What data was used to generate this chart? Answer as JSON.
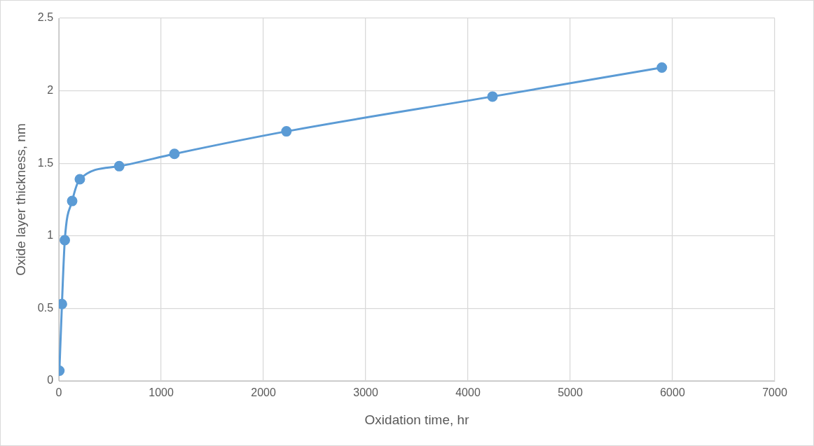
{
  "chart_data": {
    "type": "line",
    "xlabel": "Oxidation time, hr",
    "ylabel": "Oxide layer thickness, nm",
    "x": [
      5,
      30,
      58,
      130,
      205,
      590,
      1130,
      2225,
      4240,
      5896
    ],
    "series": [
      {
        "color": "#5b9bd5",
        "values": [
          0.07,
          0.53,
          0.97,
          1.24,
          1.39,
          1.48,
          1.565,
          1.72,
          1.96,
          2.16
        ]
      }
    ],
    "xlim": [
      0,
      7000
    ],
    "xticks": [
      0,
      1000,
      2000,
      3000,
      4000,
      5000,
      6000,
      7000
    ],
    "ylim": [
      0,
      2.5
    ],
    "yticks": [
      0,
      0.5,
      1,
      1.5,
      2,
      2.5
    ],
    "grid": true,
    "legend": false,
    "marker": "circle",
    "line_style": "solid"
  }
}
